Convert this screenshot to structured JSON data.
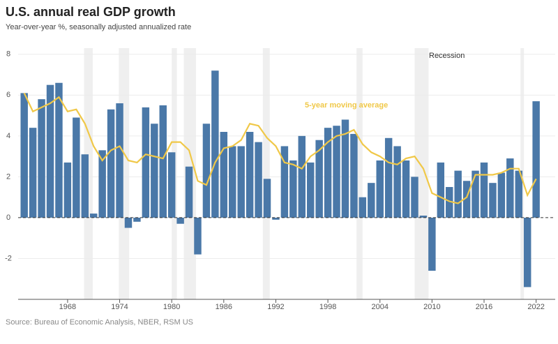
{
  "chart_data": {
    "type": "bar",
    "title": "U.S. annual real GDP growth",
    "subtitle": "Year-over-year %, seasonally adjusted annualized rate",
    "source": "Source: Bureau of Economic Analysis, NBER, RSM US",
    "recession_label": "Recession",
    "x": [
      1963,
      1964,
      1965,
      1966,
      1967,
      1968,
      1969,
      1970,
      1971,
      1972,
      1973,
      1974,
      1975,
      1976,
      1977,
      1978,
      1979,
      1980,
      1981,
      1982,
      1983,
      1984,
      1985,
      1986,
      1987,
      1988,
      1989,
      1990,
      1991,
      1992,
      1993,
      1994,
      1995,
      1996,
      1997,
      1998,
      1999,
      2000,
      2001,
      2002,
      2003,
      2004,
      2005,
      2006,
      2007,
      2008,
      2009,
      2010,
      2011,
      2012,
      2013,
      2014,
      2015,
      2016,
      2017,
      2018,
      2019,
      2020,
      2021,
      2022
    ],
    "series": [
      {
        "type": "bar",
        "color": "#4a78a8",
        "values": [
          6.1,
          4.4,
          5.8,
          6.5,
          6.6,
          2.7,
          4.9,
          3.1,
          0.2,
          3.3,
          5.3,
          5.6,
          -0.5,
          -0.2,
          5.4,
          4.6,
          5.5,
          3.2,
          -0.3,
          2.5,
          -1.8,
          4.6,
          7.2,
          4.2,
          3.5,
          3.5,
          4.2,
          3.7,
          1.9,
          -0.1,
          3.5,
          2.8,
          4.0,
          2.7,
          3.8,
          4.4,
          4.5,
          4.8,
          4.1,
          1.0,
          1.7,
          2.8,
          3.9,
          3.5,
          2.8,
          2.0,
          0.1,
          -2.6,
          2.7,
          1.5,
          2.3,
          1.8,
          2.3,
          2.7,
          1.7,
          2.2,
          2.9,
          2.3,
          -3.4,
          5.7
        ]
      },
      {
        "type": "line",
        "name": "5-year moving average",
        "color": "#f0c848",
        "values": [
          6.1,
          5.2,
          5.4,
          5.6,
          5.9,
          5.2,
          5.3,
          4.6,
          3.5,
          2.8,
          3.3,
          3.5,
          2.8,
          2.7,
          3.1,
          3.0,
          2.9,
          3.7,
          3.7,
          3.3,
          1.8,
          1.6,
          2.7,
          3.4,
          3.5,
          3.8,
          4.6,
          4.5,
          3.9,
          3.5,
          2.7,
          2.6,
          2.4,
          3.0,
          3.3,
          3.7,
          4.0,
          4.1,
          4.3,
          3.6,
          3.2,
          3.0,
          2.7,
          2.6,
          2.9,
          3.0,
          2.4,
          1.2,
          1.0,
          0.8,
          0.7,
          1.0,
          2.1,
          2.1,
          2.1,
          2.2,
          2.4,
          2.4,
          1.1,
          1.9
        ]
      }
    ],
    "recessions": [
      [
        1969.9,
        1970.9
      ],
      [
        1973.9,
        1975.1
      ],
      [
        1980.0,
        1980.6
      ],
      [
        1981.4,
        1982.8
      ],
      [
        1990.5,
        1991.3
      ],
      [
        2001.3,
        2002.0
      ],
      [
        2008.0,
        2009.6
      ],
      [
        2020.2,
        2020.6
      ]
    ],
    "xlim": [
      1962.3,
      2024.2
    ],
    "xticks": [
      1968,
      1974,
      1980,
      1986,
      1992,
      1998,
      2004,
      2010,
      2016,
      2022
    ],
    "ylim": [
      -4,
      8.3
    ],
    "yticks": [
      -2,
      0,
      2,
      4,
      6,
      8
    ],
    "grid": true
  }
}
